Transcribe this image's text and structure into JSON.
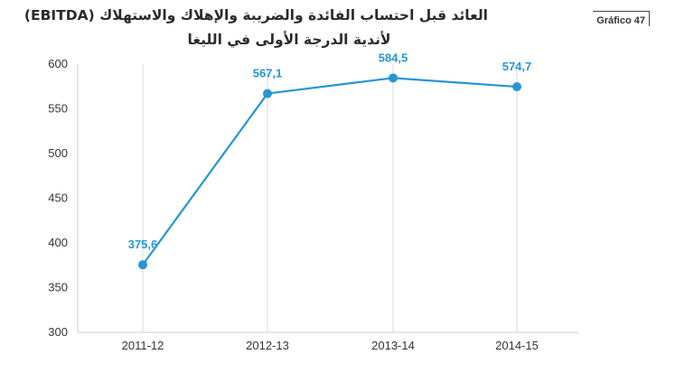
{
  "figure_label": "Gráfico 47",
  "chart_data": {
    "type": "line",
    "title_lines": [
      "العائد قبل احتساب الفائدة والضريبة والإهلاك والاستهلاك (EBITDA)",
      "لأندية الدرجة الأولى في الليغا"
    ],
    "categories": [
      "2011-12",
      "2012-13",
      "2013-14",
      "2014-15"
    ],
    "series": [
      {
        "values": [
          375.6,
          567.1,
          584.5,
          574.7
        ],
        "labels": [
          "375,6",
          "567,1",
          "584,5",
          "574,7"
        ]
      }
    ],
    "ylim": [
      300,
      600
    ],
    "yticks": [
      300,
      350,
      400,
      450,
      500,
      550,
      600
    ],
    "grid": "vertical",
    "line_color": "#2596d5"
  }
}
